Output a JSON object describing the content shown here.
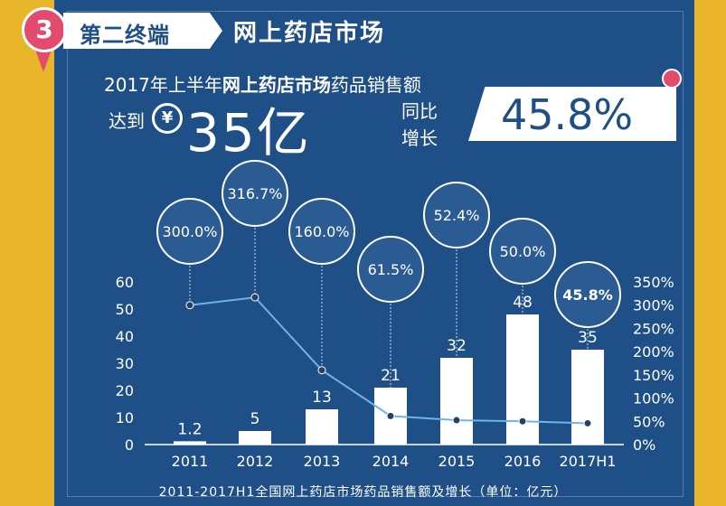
{
  "header": {
    "number": "3",
    "tag": "第二终端",
    "title": "网上药店市场"
  },
  "headline": {
    "part1": "2017年上半年",
    "part2": "网上药店市场",
    "part3": "药品销售额",
    "reach": "达到",
    "currency": "¥",
    "amount": "35亿",
    "yoy_line1": "同比",
    "yoy_line2": "增长",
    "growth": "45.8%"
  },
  "colors": {
    "background": "#1e4f86",
    "frame": "#e9b52a",
    "accent": "#e14b6d",
    "bar": "#ffffff",
    "line": "#6fb4e8",
    "bubble": "#2a5c93"
  },
  "chart_data": {
    "type": "bar",
    "categories": [
      "2011",
      "2012",
      "2013",
      "2014",
      "2015",
      "2016",
      "2017H1"
    ],
    "series": [
      {
        "values": [
          1.2,
          5,
          13,
          21,
          32,
          48,
          35
        ],
        "value_labels": [
          "1.2",
          "5",
          "13",
          "21",
          "32",
          "48",
          "35"
        ]
      },
      {
        "type": "line",
        "axis": "right",
        "values": [
          300.0,
          316.7,
          160.0,
          61.5,
          52.4,
          50.0,
          45.8
        ],
        "value_labels": [
          "300.0%",
          "316.7%",
          "160.0%",
          "61.5%",
          "52.4%",
          "50.0%",
          "45.8%"
        ]
      }
    ],
    "ylim": [
      0,
      60
    ],
    "yticks": [
      "0",
      "10",
      "20",
      "30",
      "40",
      "50",
      "60"
    ],
    "y2lim": [
      0,
      350
    ],
    "y2ticks": [
      "0%",
      "50%",
      "100%",
      "150%",
      "200%",
      "250%",
      "300%",
      "350%"
    ],
    "caption": "2011-2017H1全国网上药店市场药品销售额及增长（单位：亿元）",
    "grid": false,
    "legend": "none"
  }
}
